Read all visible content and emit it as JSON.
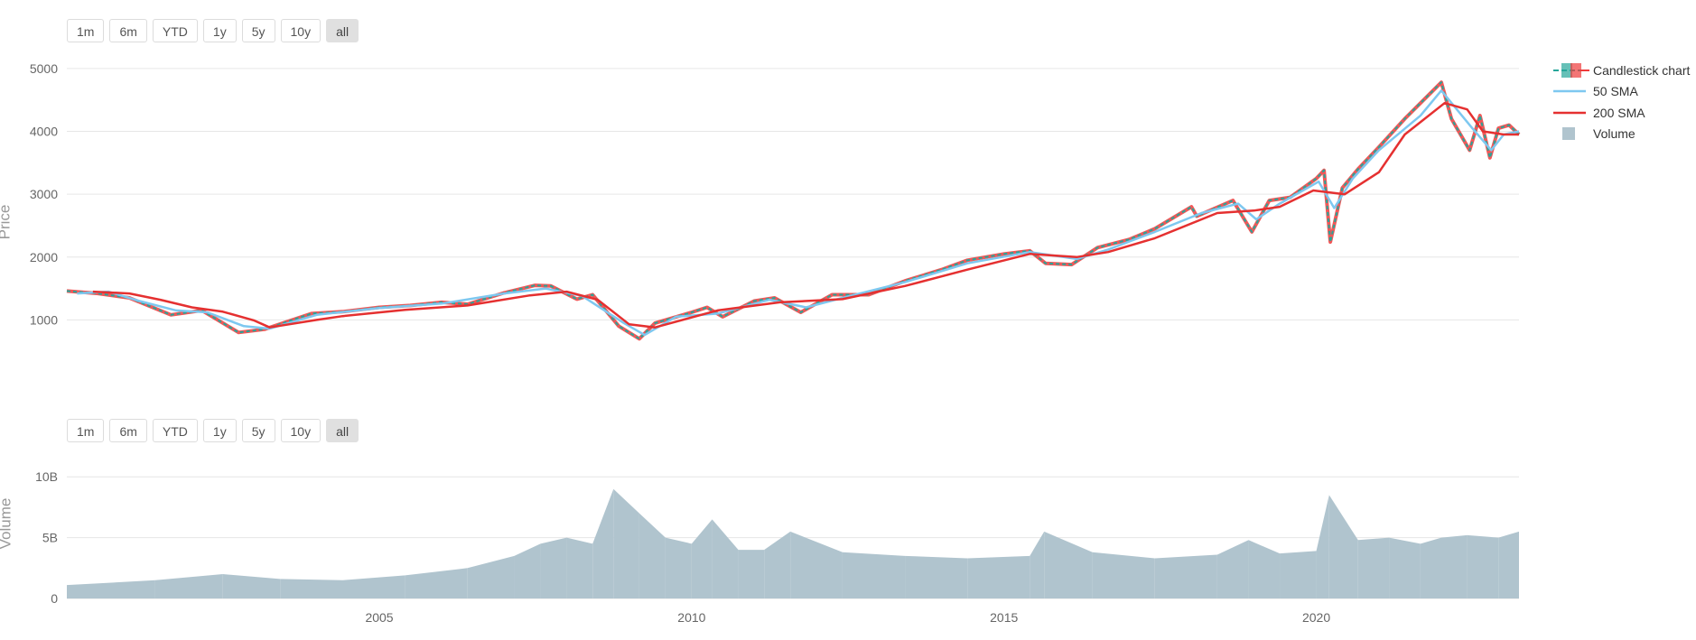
{
  "range_selector_top": {
    "buttons": [
      "1m",
      "6m",
      "YTD",
      "1y",
      "5y",
      "10y",
      "all"
    ],
    "active": "all"
  },
  "range_selector_bottom": {
    "buttons": [
      "1m",
      "6m",
      "YTD",
      "1y",
      "5y",
      "10y",
      "all"
    ],
    "active": "all"
  },
  "legend": {
    "candlestick": "Candlestick chart",
    "sma50": "50 SMA",
    "sma200": "200 SMA",
    "volume": "Volume"
  },
  "colors": {
    "increasing": "#26a69a",
    "decreasing": "#ef3b3b",
    "sma50": "#7ec8f0",
    "sma200": "#e53030",
    "volume": "#b0c4ce",
    "grid": "#e6e6e6"
  },
  "chart_data": [
    {
      "type": "line",
      "ylabel": "Price",
      "ylim": [
        0,
        5200
      ],
      "xlim": [
        "2000-01-01",
        "2023-03-31"
      ],
      "y_ticks": [
        1000,
        2000,
        3000,
        4000,
        5000
      ],
      "y_tick_labels": [
        "1000",
        "2000",
        "3000",
        "4000",
        "5000"
      ],
      "grid": true,
      "legend_position": "right",
      "series": [
        {
          "name": "Candlestick chart",
          "x": [
            "2000-01-01",
            "2000-07-01",
            "2001-01-01",
            "2001-09-01",
            "2002-03-01",
            "2002-10-01",
            "2003-03-01",
            "2003-12-01",
            "2004-06-01",
            "2005-01-01",
            "2005-07-01",
            "2006-01-01",
            "2006-06-01",
            "2007-01-01",
            "2007-07-01",
            "2007-10-01",
            "2008-03-01",
            "2008-06-01",
            "2008-11-01",
            "2009-03-01",
            "2009-06-01",
            "2010-01-01",
            "2010-04-01",
            "2010-07-01",
            "2011-01-01",
            "2011-05-01",
            "2011-10-01",
            "2012-04-01",
            "2012-11-01",
            "2013-06-01",
            "2014-01-01",
            "2014-06-01",
            "2015-01-01",
            "2015-06-01",
            "2015-09-01",
            "2016-02-01",
            "2016-07-01",
            "2017-01-01",
            "2017-06-01",
            "2018-01-01",
            "2018-02-01",
            "2018-09-01",
            "2018-12-20",
            "2019-04-01",
            "2019-08-01",
            "2020-01-01",
            "2020-02-15",
            "2020-03-23",
            "2020-06-01",
            "2020-09-01",
            "2021-01-01",
            "2021-06-01",
            "2022-01-01",
            "2022-03-01",
            "2022-06-15",
            "2022-08-15",
            "2022-10-12",
            "2022-12-01",
            "2023-02-01",
            "2023-03-31"
          ],
          "values": [
            1460,
            1420,
            1350,
            1080,
            1150,
            800,
            850,
            1100,
            1130,
            1200,
            1230,
            1280,
            1250,
            1430,
            1550,
            1540,
            1330,
            1400,
            900,
            700,
            950,
            1120,
            1200,
            1050,
            1300,
            1350,
            1120,
            1400,
            1400,
            1620,
            1800,
            1950,
            2050,
            2100,
            1900,
            1880,
            2150,
            2280,
            2450,
            2800,
            2650,
            2900,
            2400,
            2900,
            2950,
            3250,
            3380,
            2240,
            3100,
            3400,
            3750,
            4200,
            4780,
            4200,
            3700,
            4250,
            3580,
            4050,
            4100,
            3950
          ]
        },
        {
          "name": "50 SMA",
          "x": [
            "2000-03-01",
            "2000-09-01",
            "2001-03-01",
            "2001-10-01",
            "2002-04-01",
            "2002-11-01",
            "2003-04-01",
            "2004-01-01",
            "2005-01-01",
            "2006-01-01",
            "2007-01-01",
            "2007-09-01",
            "2008-04-01",
            "2008-12-01",
            "2009-04-01",
            "2009-10-01",
            "2010-06-01",
            "2011-04-01",
            "2011-11-01",
            "2012-06-01",
            "2013-06-01",
            "2014-06-01",
            "2015-06-01",
            "2016-03-01",
            "2016-09-01",
            "2017-06-01",
            "2018-03-01",
            "2018-10-01",
            "2019-01-15",
            "2019-06-01",
            "2020-01-15",
            "2020-04-15",
            "2020-08-01",
            "2021-01-01",
            "2021-09-01",
            "2022-01-01",
            "2022-07-01",
            "2022-10-20",
            "2023-01-01",
            "2023-03-31"
          ],
          "values": [
            1420,
            1450,
            1300,
            1150,
            1120,
            900,
            860,
            1080,
            1190,
            1260,
            1420,
            1500,
            1380,
            950,
            760,
            1050,
            1100,
            1320,
            1200,
            1350,
            1600,
            1900,
            2080,
            1970,
            2120,
            2400,
            2700,
            2850,
            2600,
            2850,
            3200,
            2780,
            3250,
            3700,
            4250,
            4650,
            4050,
            3700,
            3950,
            4000
          ]
        },
        {
          "name": "200 SMA",
          "x": [
            "2000-06-01",
            "2001-01-01",
            "2001-07-01",
            "2002-01-01",
            "2002-07-01",
            "2003-01-01",
            "2003-04-01",
            "2004-01-01",
            "2004-06-01",
            "2005-06-01",
            "2006-06-01",
            "2007-06-01",
            "2008-01-01",
            "2008-07-01",
            "2009-01-01",
            "2009-06-01",
            "2010-06-01",
            "2011-06-01",
            "2012-06-01",
            "2013-06-01",
            "2014-06-01",
            "2015-06-01",
            "2016-03-01",
            "2016-09-01",
            "2017-06-01",
            "2018-06-01",
            "2019-01-01",
            "2019-06-01",
            "2019-12-15",
            "2020-06-15",
            "2021-01-01",
            "2021-06-01",
            "2022-01-20",
            "2022-06-01",
            "2022-09-01",
            "2023-01-01",
            "2023-03-31"
          ],
          "values": [
            1450,
            1420,
            1320,
            1200,
            1130,
            990,
            880,
            1000,
            1060,
            1160,
            1230,
            1390,
            1450,
            1320,
            930,
            880,
            1150,
            1280,
            1330,
            1540,
            1800,
            2050,
            2000,
            2080,
            2300,
            2700,
            2740,
            2800,
            3060,
            3000,
            3350,
            3950,
            4450,
            4350,
            4000,
            3950,
            3950
          ]
        }
      ]
    },
    {
      "type": "bar",
      "ylabel": "Volume",
      "ylim": [
        0,
        11500000000
      ],
      "y_ticks": [
        0,
        5000000000,
        10000000000
      ],
      "y_tick_labels": [
        "0",
        "5B",
        "10B"
      ],
      "x_tick_labels": [
        "2005",
        "2010",
        "2015",
        "2020"
      ],
      "grid": true,
      "series": [
        {
          "name": "Volume",
          "x": [
            "2000-01-01",
            "2001-06-01",
            "2002-07-01",
            "2003-06-01",
            "2004-06-01",
            "2005-06-01",
            "2006-06-01",
            "2007-03-01",
            "2007-08-01",
            "2008-01-01",
            "2008-06-01",
            "2008-10-01",
            "2009-03-01",
            "2009-08-01",
            "2010-01-01",
            "2010-05-01",
            "2010-10-01",
            "2011-03-01",
            "2011-08-01",
            "2012-06-01",
            "2013-06-01",
            "2014-06-01",
            "2015-06-01",
            "2015-08-24",
            "2016-06-01",
            "2017-06-01",
            "2018-06-01",
            "2018-12-01",
            "2019-06-01",
            "2020-01-01",
            "2020-03-16",
            "2020-09-01",
            "2021-03-01",
            "2021-09-01",
            "2022-01-01",
            "2022-06-01",
            "2022-12-01",
            "2023-03-31"
          ],
          "values": [
            1100000000,
            1500000000,
            2000000000,
            1600000000,
            1500000000,
            1900000000,
            2500000000,
            3500000000,
            4500000000,
            5000000000,
            4500000000,
            9000000000,
            7000000000,
            5000000000,
            4500000000,
            6500000000,
            4000000000,
            4000000000,
            5500000000,
            3800000000,
            3500000000,
            3300000000,
            3500000000,
            5500000000,
            3800000000,
            3300000000,
            3600000000,
            4800000000,
            3700000000,
            3900000000,
            8500000000,
            4800000000,
            5000000000,
            4500000000,
            5000000000,
            5200000000,
            5000000000,
            5500000000
          ]
        }
      ]
    }
  ]
}
